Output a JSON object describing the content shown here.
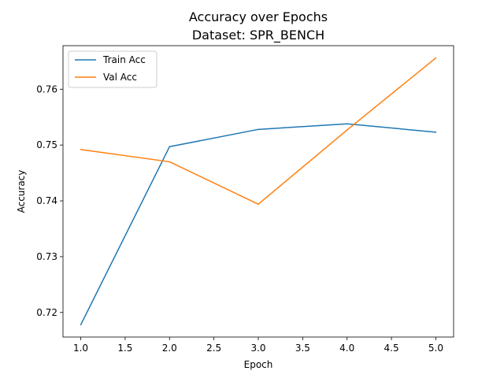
{
  "chart_data": {
    "type": "line",
    "title": "Accuracy over Epochs",
    "subtitle": "Dataset: SPR_BENCH",
    "xlabel": "Epoch",
    "ylabel": "Accuracy",
    "xlim": [
      0.8,
      5.2
    ],
    "ylim": [
      0.7156,
      0.7678
    ],
    "xticks": [
      1.0,
      1.5,
      2.0,
      2.5,
      3.0,
      3.5,
      4.0,
      4.5,
      5.0
    ],
    "xtick_labels": [
      "1.0",
      "1.5",
      "2.0",
      "2.5",
      "3.0",
      "3.5",
      "4.0",
      "4.5",
      "5.0"
    ],
    "yticks": [
      0.72,
      0.73,
      0.74,
      0.75,
      0.76
    ],
    "ytick_labels": [
      "0.72",
      "0.73",
      "0.74",
      "0.75",
      "0.76"
    ],
    "grid": false,
    "legend_position": "upper left",
    "x": [
      1,
      2,
      3,
      4,
      5
    ],
    "series": [
      {
        "name": "Train Acc",
        "color": "#1f77b4",
        "values": [
          0.7178,
          0.7497,
          0.7528,
          0.7538,
          0.7523
        ]
      },
      {
        "name": "Val Acc",
        "color": "#ff7f0e",
        "values": [
          0.7492,
          0.747,
          0.7394,
          0.7527,
          0.7656
        ]
      }
    ]
  }
}
